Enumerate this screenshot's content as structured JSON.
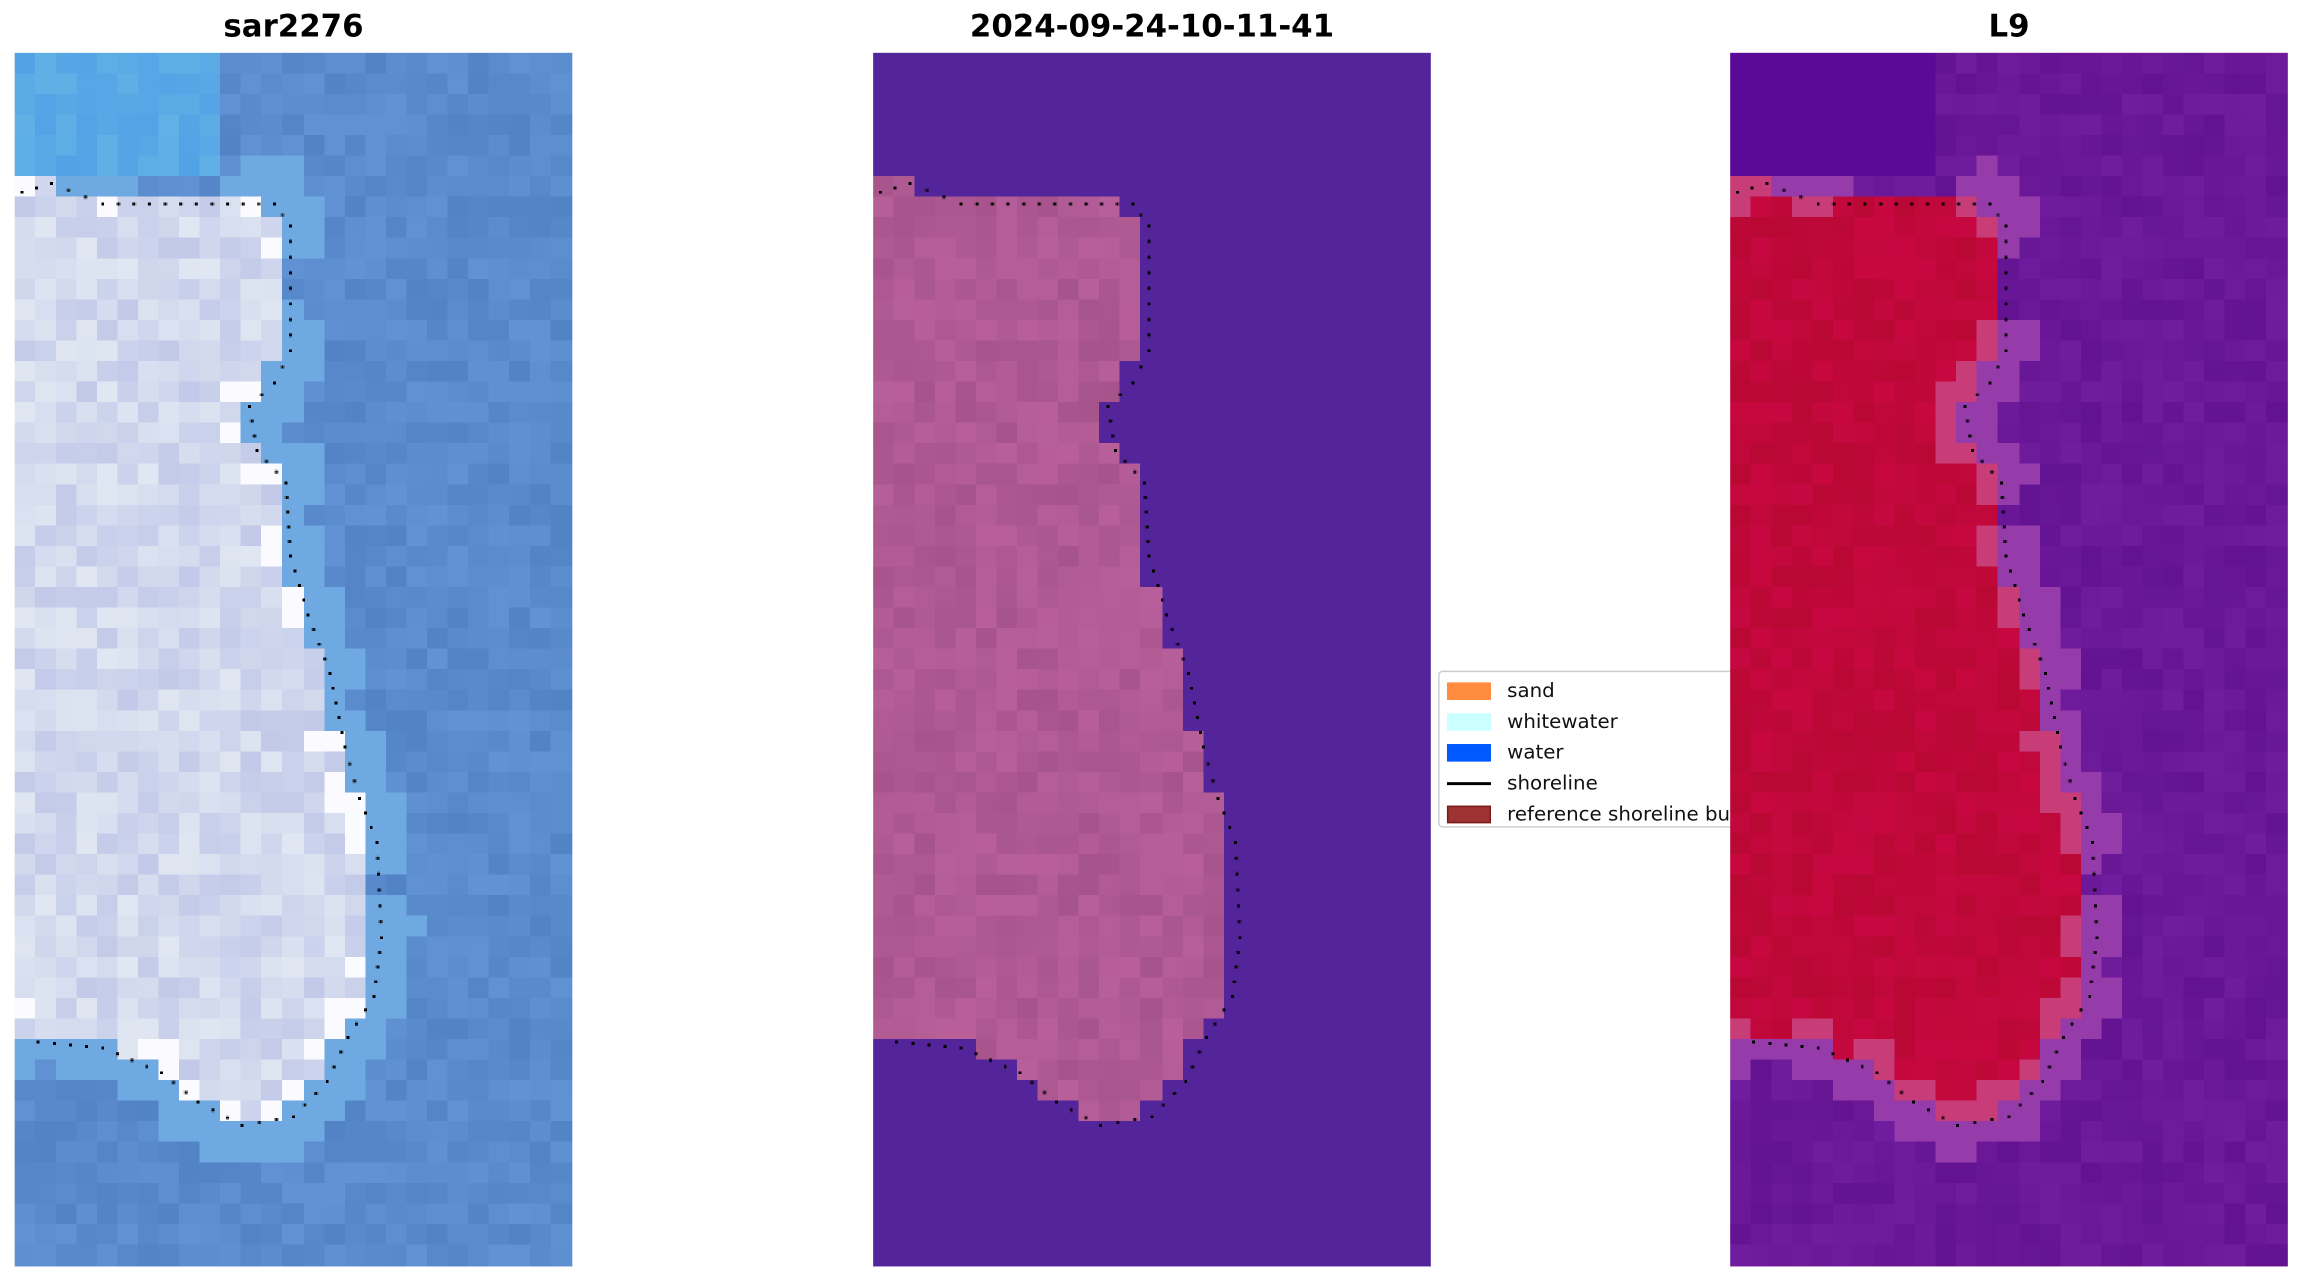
{
  "panels": [
    {
      "title": "sar2276",
      "style": "rgb"
    },
    {
      "title": "2024-09-24-10-11-41",
      "style": "classified"
    },
    {
      "title": "L9",
      "style": "index"
    }
  ],
  "legend": {
    "items": [
      {
        "label": "sand",
        "color": "#ff8c3f",
        "kind": "patch"
      },
      {
        "label": "whitewater",
        "color": "#ccffff",
        "kind": "patch"
      },
      {
        "label": "water",
        "color": "#0059ff",
        "kind": "patch"
      },
      {
        "label": "shoreline",
        "color": "#000000",
        "kind": "line"
      },
      {
        "label": "reference shoreline bu",
        "color": "#9e3333",
        "kind": "patch"
      }
    ]
  },
  "colors": {
    "rgb_water": "#5a8bcc",
    "rgb_land": "#dcdeee",
    "class_water": "#54249a",
    "class_land": "#b05a94",
    "index_water": "#6a1898",
    "index_land": "#c0083a"
  }
}
